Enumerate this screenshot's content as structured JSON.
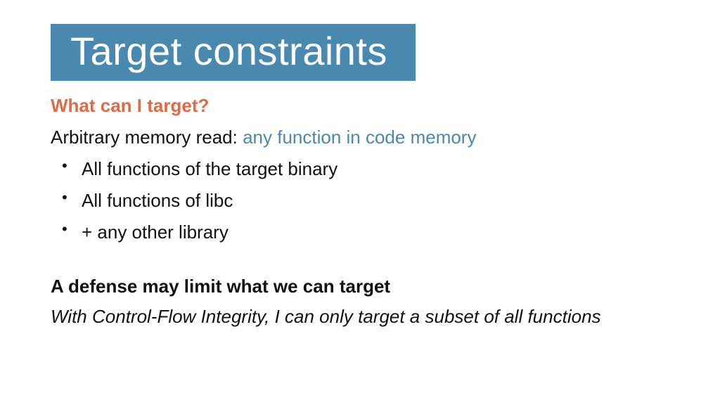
{
  "colors": {
    "title_bg": "#4989b0",
    "title_text": "#ffffff",
    "accent_orange": "#e06a45",
    "accent_blue": "#4989b0",
    "body_text": "#111111",
    "background": "#ffffff"
  },
  "typography": {
    "title_fontsize": 56,
    "subheading_fontsize": 26,
    "body_fontsize": 26,
    "bullet_fontsize": 26
  },
  "title": "Target constraints",
  "subheading": "What can I target?",
  "intro": {
    "prefix": "Arbitrary memory read: ",
    "highlight": "any function in code memory"
  },
  "bullets": [
    "All functions of the target binary",
    "All functions of libc",
    "+ any other library"
  ],
  "defense_heading": "A defense may limit what we can target",
  "defense_note": "With Control-Flow Integrity, I can only target a subset of all functions"
}
